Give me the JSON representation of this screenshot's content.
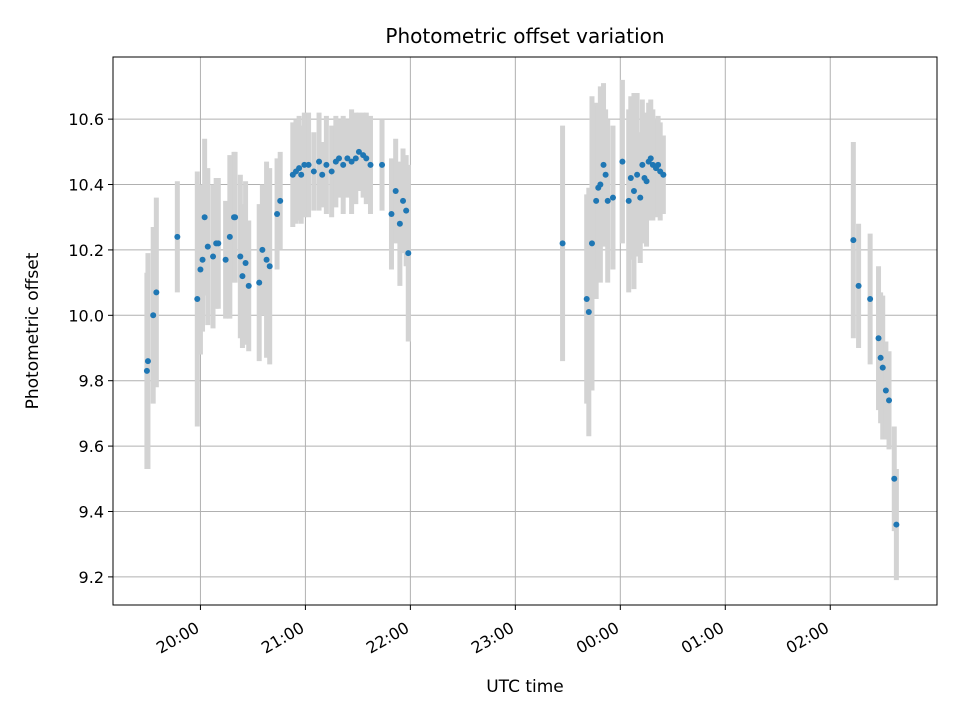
{
  "chart_data": {
    "type": "scatter",
    "title": "Photometric offset variation",
    "xlabel": "UTC time",
    "ylabel": "Photometric offset",
    "x_unit": "UTC time of day (fractional hours, values >24 are after midnight)",
    "xlim": [
      19.167,
      27.017
    ],
    "ylim": [
      9.114,
      10.79
    ],
    "x_ticks": [
      {
        "value": 20,
        "label": "20:00"
      },
      {
        "value": 21,
        "label": "21:00"
      },
      {
        "value": 22,
        "label": "22:00"
      },
      {
        "value": 23,
        "label": "23:00"
      },
      {
        "value": 24,
        "label": "00:00"
      },
      {
        "value": 25,
        "label": "01:00"
      },
      {
        "value": 26,
        "label": "02:00"
      }
    ],
    "y_ticks": [
      {
        "value": 9.2,
        "label": "9.2"
      },
      {
        "value": 9.4,
        "label": "9.4"
      },
      {
        "value": 9.6,
        "label": "9.6"
      },
      {
        "value": 9.8,
        "label": "9.8"
      },
      {
        "value": 10.0,
        "label": "10.0"
      },
      {
        "value": 10.2,
        "label": "10.2"
      },
      {
        "value": 10.4,
        "label": "10.4"
      },
      {
        "value": 10.6,
        "label": "10.6"
      }
    ],
    "grid": true,
    "point_color": "#1f77b4",
    "errorbar_color": "#d3d3d3",
    "points": [
      [
        19.49,
        9.83,
        0.3
      ],
      [
        19.5,
        9.86,
        0.33
      ],
      [
        19.55,
        10.0,
        0.27
      ],
      [
        19.58,
        10.07,
        0.29
      ],
      [
        19.78,
        10.24,
        0.17
      ],
      [
        19.97,
        10.05,
        0.39
      ],
      [
        20.0,
        10.14,
        0.26
      ],
      [
        20.02,
        10.17,
        0.22
      ],
      [
        20.04,
        10.3,
        0.24
      ],
      [
        20.07,
        10.21,
        0.24
      ],
      [
        20.12,
        10.18,
        0.22
      ],
      [
        20.15,
        10.22,
        0.2
      ],
      [
        20.17,
        10.22,
        0.2
      ],
      [
        20.24,
        10.17,
        0.18
      ],
      [
        20.28,
        10.24,
        0.25
      ],
      [
        20.32,
        10.3,
        0.2
      ],
      [
        20.33,
        10.3,
        0.2
      ],
      [
        20.38,
        10.18,
        0.25
      ],
      [
        20.4,
        10.12,
        0.22
      ],
      [
        20.43,
        10.16,
        0.25
      ],
      [
        20.46,
        10.09,
        0.2
      ],
      [
        20.56,
        10.1,
        0.24
      ],
      [
        20.59,
        10.2,
        0.2
      ],
      [
        20.63,
        10.17,
        0.3
      ],
      [
        20.66,
        10.15,
        0.3
      ],
      [
        20.73,
        10.31,
        0.17
      ],
      [
        20.76,
        10.35,
        0.15
      ],
      [
        20.88,
        10.43,
        0.16
      ],
      [
        20.91,
        10.44,
        0.16
      ],
      [
        20.94,
        10.45,
        0.16
      ],
      [
        20.96,
        10.43,
        0.15
      ],
      [
        20.99,
        10.46,
        0.16
      ],
      [
        21.03,
        10.46,
        0.16
      ],
      [
        21.08,
        10.44,
        0.12
      ],
      [
        21.13,
        10.47,
        0.15
      ],
      [
        21.16,
        10.43,
        0.1
      ],
      [
        21.2,
        10.46,
        0.15
      ],
      [
        21.25,
        10.44,
        0.14
      ],
      [
        21.29,
        10.47,
        0.14
      ],
      [
        21.32,
        10.48,
        0.12
      ],
      [
        21.36,
        10.46,
        0.15
      ],
      [
        21.4,
        10.48,
        0.12
      ],
      [
        21.44,
        10.47,
        0.16
      ],
      [
        21.48,
        10.48,
        0.14
      ],
      [
        21.51,
        10.5,
        0.12
      ],
      [
        21.55,
        10.49,
        0.13
      ],
      [
        21.58,
        10.48,
        0.14
      ],
      [
        21.62,
        10.46,
        0.15
      ],
      [
        21.73,
        10.46,
        0.14
      ],
      [
        21.82,
        10.31,
        0.17
      ],
      [
        21.86,
        10.38,
        0.16
      ],
      [
        21.9,
        10.28,
        0.19
      ],
      [
        21.93,
        10.35,
        0.16
      ],
      [
        21.96,
        10.32,
        0.17
      ],
      [
        21.98,
        10.19,
        0.27
      ],
      [
        23.45,
        10.22,
        0.36
      ],
      [
        23.68,
        10.05,
        0.32
      ],
      [
        23.7,
        10.01,
        0.38
      ],
      [
        23.73,
        10.22,
        0.45
      ],
      [
        23.77,
        10.35,
        0.3
      ],
      [
        23.79,
        10.39,
        0.25
      ],
      [
        23.81,
        10.4,
        0.3
      ],
      [
        23.84,
        10.46,
        0.25
      ],
      [
        23.86,
        10.43,
        0.2
      ],
      [
        23.88,
        10.35,
        0.25
      ],
      [
        23.93,
        10.36,
        0.22
      ],
      [
        24.02,
        10.47,
        0.25
      ],
      [
        24.08,
        10.35,
        0.28
      ],
      [
        24.1,
        10.42,
        0.25
      ],
      [
        24.13,
        10.38,
        0.3
      ],
      [
        24.16,
        10.43,
        0.25
      ],
      [
        24.19,
        10.36,
        0.2
      ],
      [
        24.21,
        10.46,
        0.2
      ],
      [
        24.23,
        10.42,
        0.2
      ],
      [
        24.25,
        10.41,
        0.2
      ],
      [
        24.27,
        10.47,
        0.18
      ],
      [
        24.29,
        10.48,
        0.18
      ],
      [
        24.31,
        10.46,
        0.17
      ],
      [
        24.34,
        10.45,
        0.15
      ],
      [
        24.36,
        10.46,
        0.15
      ],
      [
        24.38,
        10.44,
        0.15
      ],
      [
        24.41,
        10.43,
        0.12
      ],
      [
        26.22,
        10.23,
        0.3
      ],
      [
        26.27,
        10.09,
        0.19
      ],
      [
        26.38,
        10.05,
        0.2
      ],
      [
        26.46,
        9.93,
        0.22
      ],
      [
        26.48,
        9.87,
        0.2
      ],
      [
        26.5,
        9.84,
        0.22
      ],
      [
        26.53,
        9.77,
        0.15
      ],
      [
        26.56,
        9.74,
        0.15
      ],
      [
        26.61,
        9.5,
        0.16
      ],
      [
        26.63,
        9.36,
        0.17
      ]
    ]
  }
}
